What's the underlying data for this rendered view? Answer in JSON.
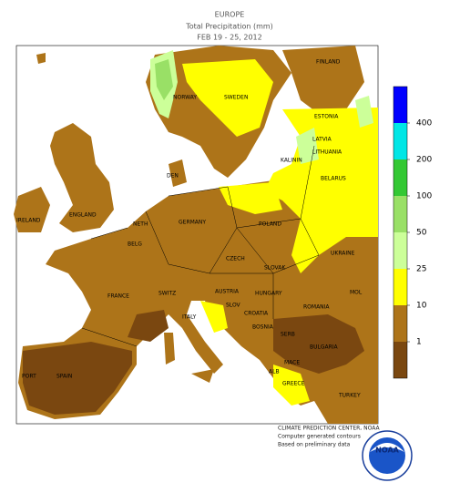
{
  "header": {
    "title": "EUROPE",
    "subtitle": "Total Precipitation (mm)",
    "dates": "FEB 19 - 25, 2012"
  },
  "legend": {
    "ticks": [
      1,
      10,
      25,
      50,
      100,
      200,
      400
    ],
    "colors": [
      "#7a4710",
      "#ad7419",
      "#ffff00",
      "#ccff99",
      "#99e066",
      "#33c833",
      "#00e6e6",
      "#0000ff"
    ]
  },
  "labels": [
    "FINLAND",
    "NORWAY",
    "SWEDEN",
    "ESTONIA",
    "LATVIA",
    "LITHUANIA",
    "DEN",
    "KALININ",
    "BELARUS",
    "IRELAND",
    "ENGLAND",
    "NETH",
    "GERMANY",
    "POLAND",
    "BELG",
    "UKRAINE",
    "CZECH",
    "SLOVAK",
    "FRANCE",
    "SWITZ",
    "AUSTRIA",
    "HUNGARY",
    "MOL",
    "ROMANIA",
    "SLOV",
    "CROATIA",
    "ITALY",
    "BOSNIA",
    "SERB",
    "BULGARIA",
    "MACE",
    "ALB",
    "PORT",
    "SPAIN",
    "GREECE",
    "TURKEY"
  ],
  "credits": [
    "CLIMATE PREDICTION CENTER, NOAA",
    "Computer generated contours",
    "Based on preliminary data"
  ],
  "logo": "NOAA"
}
